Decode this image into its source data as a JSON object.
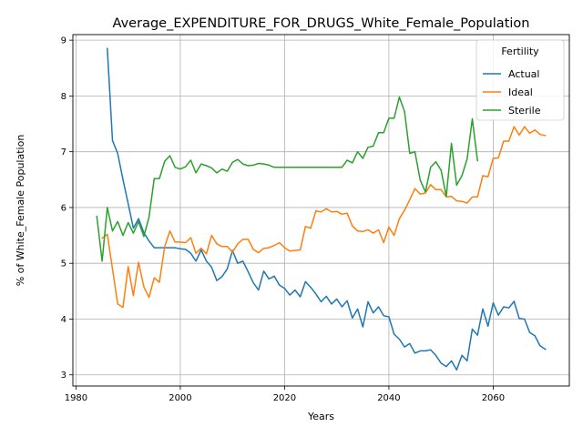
{
  "chart_data": {
    "type": "line",
    "title": "Average_EXPENDITURE_FOR_DRUGS_White_Female_Population",
    "xlabel": "Years",
    "ylabel": "% of White_Female Population",
    "xlim": [
      1979.4,
      2074.6
    ],
    "ylim": [
      2.8,
      9.1
    ],
    "xticks": [
      1980,
      2000,
      2020,
      2040,
      2060
    ],
    "yticks": [
      3,
      4,
      5,
      6,
      7,
      8,
      9
    ],
    "grid": true,
    "legend": {
      "title": "Fertility",
      "placement": "top-right"
    },
    "series": [
      {
        "name": "Actual",
        "color": "#1f77b4",
        "x": [
          1986,
          1987,
          1988,
          1989,
          1990,
          1991,
          1992,
          1993,
          1994,
          1995,
          1996,
          1997,
          1998,
          1999,
          2000,
          2001,
          2002,
          2003,
          2004,
          2005,
          2006,
          2007,
          2008,
          2009,
          2010,
          2011,
          2012,
          2013,
          2014,
          2015,
          2016,
          2017,
          2018,
          2019,
          2020,
          2021,
          2022,
          2023,
          2024,
          2025,
          2026,
          2027,
          2028,
          2029,
          2030,
          2031,
          2032,
          2033,
          2034,
          2035,
          2036,
          2037,
          2038,
          2039,
          2040,
          2041,
          2042,
          2043,
          2044,
          2045,
          2046,
          2047,
          2048,
          2049,
          2050,
          2051,
          2052,
          2053,
          2054,
          2055,
          2056,
          2057,
          2058,
          2059,
          2060,
          2061,
          2062,
          2063,
          2064,
          2065,
          2066,
          2067,
          2068,
          2069,
          2070
        ],
        "y": [
          8.85,
          7.2,
          6.97,
          6.5,
          6.07,
          5.63,
          5.8,
          5.55,
          5.4,
          5.28,
          5.28,
          5.28,
          5.28,
          5.28,
          5.26,
          5.25,
          5.18,
          5.04,
          5.24,
          5.04,
          4.93,
          4.69,
          4.76,
          4.9,
          5.23,
          5.0,
          5.04,
          4.85,
          4.65,
          4.52,
          4.86,
          4.72,
          4.77,
          4.61,
          4.55,
          4.43,
          4.52,
          4.4,
          4.67,
          4.57,
          4.45,
          4.31,
          4.41,
          4.27,
          4.36,
          4.22,
          4.33,
          4.02,
          4.18,
          3.86,
          4.31,
          4.11,
          4.22,
          4.06,
          4.04,
          3.73,
          3.64,
          3.5,
          3.56,
          3.39,
          3.43,
          3.43,
          3.45,
          3.35,
          3.21,
          3.15,
          3.25,
          3.09,
          3.35,
          3.25,
          3.82,
          3.71,
          4.18,
          3.87,
          4.29,
          4.07,
          4.22,
          4.2,
          4.32,
          4.01,
          4.0,
          3.76,
          3.7,
          3.52,
          3.46
        ]
      },
      {
        "name": "Ideal",
        "color": "#ff7f0e",
        "x": [
          1985,
          1986,
          1987,
          1988,
          1989,
          1990,
          1991,
          1992,
          1993,
          1994,
          1995,
          1996,
          1997,
          1998,
          1999,
          2000,
          2001,
          2002,
          2003,
          2004,
          2005,
          2006,
          2007,
          2008,
          2009,
          2010,
          2011,
          2012,
          2013,
          2014,
          2015,
          2016,
          2017,
          2018,
          2019,
          2020,
          2021,
          2022,
          2023,
          2024,
          2025,
          2026,
          2027,
          2028,
          2029,
          2030,
          2031,
          2032,
          2033,
          2034,
          2035,
          2036,
          2037,
          2038,
          2039,
          2040,
          2041,
          2042,
          2043,
          2044,
          2045,
          2046,
          2047,
          2048,
          2049,
          2050,
          2051,
          2052,
          2053,
          2054,
          2055,
          2056,
          2057,
          2058,
          2059,
          2060,
          2061,
          2062,
          2063,
          2064,
          2065,
          2066,
          2067,
          2068,
          2069,
          2070
        ],
        "y": [
          5.45,
          5.52,
          4.9,
          4.27,
          4.21,
          4.94,
          4.42,
          5.02,
          4.58,
          4.39,
          4.74,
          4.66,
          5.3,
          5.58,
          5.38,
          5.38,
          5.37,
          5.46,
          5.18,
          5.27,
          5.17,
          5.5,
          5.35,
          5.3,
          5.3,
          5.2,
          5.35,
          5.43,
          5.43,
          5.25,
          5.19,
          5.27,
          5.28,
          5.32,
          5.37,
          5.28,
          5.22,
          5.23,
          5.24,
          5.66,
          5.63,
          5.94,
          5.92,
          5.98,
          5.92,
          5.93,
          5.88,
          5.9,
          5.67,
          5.58,
          5.57,
          5.6,
          5.54,
          5.6,
          5.37,
          5.65,
          5.5,
          5.8,
          5.95,
          6.14,
          6.34,
          6.24,
          6.26,
          6.41,
          6.32,
          6.32,
          6.19,
          6.2,
          6.12,
          6.11,
          6.08,
          6.19,
          6.19,
          6.57,
          6.55,
          6.88,
          6.89,
          7.19,
          7.19,
          7.45,
          7.3,
          7.45,
          7.33,
          7.39,
          7.31,
          7.29
        ]
      },
      {
        "name": "Sterile",
        "color": "#2ca02c",
        "x": [
          1984,
          1985,
          1986,
          1987,
          1988,
          1989,
          1990,
          1991,
          1992,
          1993,
          1994,
          1995,
          1996,
          1997,
          1998,
          1999,
          2000,
          2001,
          2002,
          2003,
          2004,
          2005,
          2006,
          2007,
          2008,
          2009,
          2010,
          2011,
          2012,
          2013,
          2014,
          2015,
          2016,
          2017,
          2018,
          2019,
          2020,
          2021,
          2022,
          2023,
          2024,
          2025,
          2026,
          2027,
          2028,
          2029,
          2030,
          2031,
          2032,
          2033,
          2034,
          2035,
          2036,
          2037,
          2038,
          2039,
          2040,
          2041,
          2042,
          2043,
          2044,
          2045,
          2046,
          2047,
          2048,
          2049,
          2050,
          2051,
          2052,
          2053,
          2054,
          2055,
          2056,
          2057
        ],
        "y": [
          5.84,
          5.04,
          6.0,
          5.58,
          5.75,
          5.5,
          5.73,
          5.54,
          5.75,
          5.48,
          5.83,
          6.52,
          6.52,
          6.83,
          6.93,
          6.72,
          6.69,
          6.73,
          6.85,
          6.62,
          6.78,
          6.75,
          6.71,
          6.62,
          6.69,
          6.65,
          6.81,
          6.86,
          6.78,
          6.75,
          6.76,
          6.79,
          6.78,
          6.76,
          6.72,
          6.72,
          6.72,
          6.72,
          6.72,
          6.72,
          6.72,
          6.72,
          6.72,
          6.72,
          6.72,
          6.72,
          6.72,
          6.72,
          6.85,
          6.8,
          7.0,
          6.88,
          7.08,
          7.1,
          7.34,
          7.34,
          7.6,
          7.6,
          7.98,
          7.72,
          6.97,
          7.0,
          6.49,
          6.28,
          6.72,
          6.82,
          6.67,
          6.2,
          7.15,
          6.4,
          6.57,
          6.87,
          7.59,
          6.84
        ]
      }
    ]
  }
}
